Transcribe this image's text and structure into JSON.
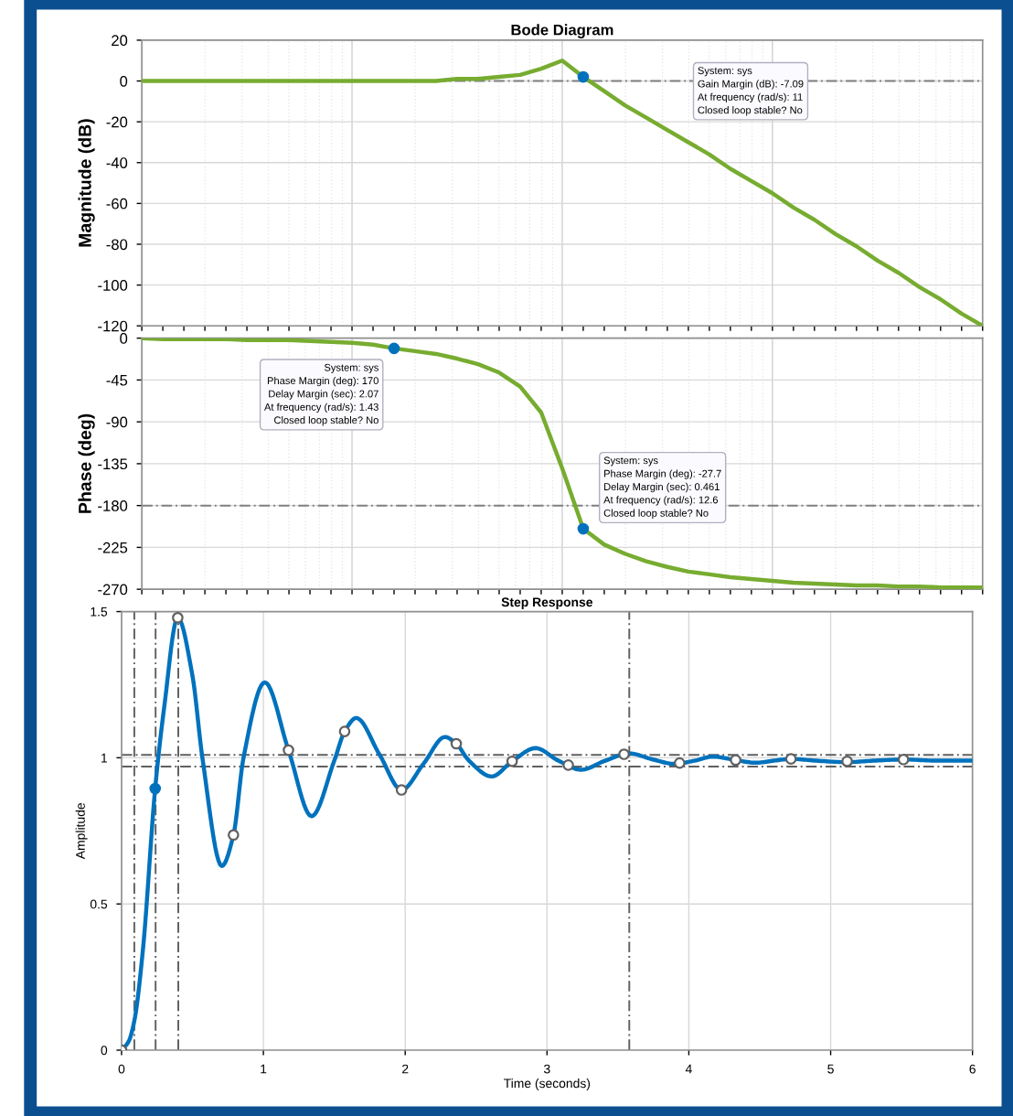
{
  "chart_data": [
    {
      "type": "line",
      "title": "Bode Diagram",
      "ylabel": "Magnitude (dB)",
      "categories": [
        null,
        null,
        null,
        null,
        null,
        null,
        null,
        null,
        null,
        null,
        null,
        null,
        null,
        null,
        null,
        null,
        null,
        null,
        null,
        null,
        null,
        null,
        null,
        null,
        null,
        null,
        null,
        null,
        null,
        null,
        null,
        null,
        null,
        null,
        null,
        null,
        null,
        null,
        null,
        null,
        null
      ],
      "series": [
        {
          "color": "#77ac30",
          "values": [
            0,
            0,
            0,
            0,
            0,
            0,
            0,
            0,
            0,
            0,
            0,
            0,
            0,
            0,
            0,
            1,
            1,
            2,
            3,
            6,
            10,
            2,
            -5,
            -12,
            -18,
            -24,
            -30,
            -36,
            -43,
            -49,
            -55,
            -62,
            -68,
            -75,
            -81,
            -88,
            -94,
            -101,
            -107,
            -114,
            -120
          ]
        },
        {
          "type": "scatter",
          "color": "#0072bd",
          "values": [
            null,
            null,
            null,
            null,
            null,
            null,
            null,
            null,
            null,
            null,
            null,
            null,
            null,
            null,
            null,
            null,
            null,
            null,
            null,
            null,
            null,
            2,
            null,
            null,
            null,
            null,
            null,
            null,
            null,
            null,
            null,
            null,
            null,
            null,
            null,
            null,
            null,
            null,
            null,
            null,
            null
          ]
        }
      ],
      "ylim": [
        -120,
        20
      ],
      "yticks": [
        -120,
        -100,
        -80,
        -60,
        -40,
        -20,
        0,
        20
      ],
      "ref_lines": [
        {
          "axis": "y",
          "value": 0,
          "color": "#808080",
          "line_style": "dashed"
        }
      ],
      "annotations": [
        "System: sys\nGain Margin (dB): -7.09\nAt frequency (rad/s): 11\nClosed loop stable? No"
      ],
      "grid": true,
      "tick_labels": "y"
    },
    {
      "type": "line",
      "ylabel": "Phase (deg)",
      "categories": [
        null,
        null,
        null,
        null,
        null,
        null,
        null,
        null,
        null,
        null,
        null,
        null,
        null,
        null,
        null,
        null,
        null,
        null,
        null,
        null,
        null,
        null,
        null,
        null,
        null,
        null,
        null,
        null,
        null,
        null,
        null,
        null,
        null,
        null,
        null,
        null,
        null,
        null,
        null,
        null,
        null
      ],
      "series": [
        {
          "color": "#77ac30",
          "values": [
            0,
            -1,
            -1,
            -1,
            -1,
            -2,
            -2,
            -2,
            -3,
            -4,
            -5,
            -7,
            -11,
            -14,
            -17,
            -22,
            -28,
            -37,
            -52,
            -80,
            -140,
            -205,
            -222,
            -232,
            -240,
            -246,
            -251,
            -254,
            -257,
            -259,
            -261,
            -263,
            -264,
            -265,
            -266,
            -266,
            -267,
            -267,
            -268,
            -268,
            -268
          ]
        },
        {
          "type": "scatter",
          "color": "#0072bd",
          "values": [
            null,
            null,
            null,
            null,
            null,
            null,
            null,
            null,
            null,
            null,
            null,
            null,
            -11,
            null,
            null,
            null,
            null,
            null,
            null,
            null,
            null,
            -205,
            null,
            null,
            null,
            null,
            null,
            null,
            null,
            null,
            null,
            null,
            null,
            null,
            null,
            null,
            null,
            null,
            null,
            null,
            null
          ]
        }
      ],
      "ylim": [
        -270,
        0
      ],
      "yticks": [
        -270,
        -225,
        -180,
        -135,
        -90,
        -45,
        0
      ],
      "ref_lines": [
        {
          "axis": "y",
          "value": -180,
          "color": "#808080",
          "line_style": "dashed"
        }
      ],
      "annotations": [
        "System: sys\nPhase Margin (deg): 170\nDelay Margin (sec): 2.07\nAt frequency (rad/s): 1.43\nClosed loop stable? No",
        "System: sys\nPhase Margin (deg): -27.7\nDelay Margin (sec): 0.461\nAt frequency (rad/s): 12.6\nClosed loop stable? No"
      ],
      "grid": true,
      "tick_labels": "y"
    },
    {
      "type": "line",
      "title": "Step Response",
      "xlabel": "Time (seconds)",
      "ylabel": "Amplitude",
      "series": [
        {
          "color": "#0072bd",
          "x": [
            0,
            0.05,
            0.09,
            0.15,
            0.237,
            0.3,
            0.396,
            0.5,
            0.57,
            0.707,
            0.789,
            0.86,
            1.01,
            1.177,
            1.34,
            1.5,
            1.573,
            1.655,
            1.82,
            1.974,
            2.13,
            2.28,
            2.36,
            2.45,
            2.61,
            2.754,
            2.92,
            3.08,
            3.24,
            3.41,
            3.58,
            3.74,
            3.9,
            4.04,
            4.17,
            4.33,
            4.47,
            4.6,
            4.72,
            4.9,
            5.11,
            5.3,
            5.52,
            5.75,
            6
          ],
          "values": [
            0,
            0.03,
            0.1,
            0.34,
            0.895,
            1.17,
            1.479,
            1.28,
            1.0,
            0.63,
            0.736,
            1.0,
            1.258,
            1.026,
            0.8,
            0.99,
            1.09,
            1.136,
            1.01,
            0.89,
            0.98,
            1.071,
            1.048,
            0.99,
            0.936,
            0.988,
            1.033,
            0.99,
            0.959,
            0.99,
            1.015,
            0.995,
            0.979,
            0.99,
            1.004,
            0.992,
            0.983,
            0.99,
            0.996,
            0.99,
            0.985,
            0.99,
            0.994,
            0.99,
            0.99
          ]
        },
        {
          "type": "scatter",
          "marker": "circle",
          "color": "#ffffff",
          "x": [
            0,
            0.396,
            0.789,
            1.177,
            1.573,
            1.974,
            2.36,
            2.754,
            3.15,
            3.543,
            3.935,
            4.33,
            4.72,
            5.116,
            5.513
          ],
          "values": [
            0,
            1.479,
            0.736,
            1.026,
            1.09,
            0.89,
            1.048,
            0.988,
            0.975,
            1.012,
            0.982,
            0.992,
            0.996,
            0.988,
            0.994
          ]
        },
        {
          "type": "scatter",
          "marker": "circle",
          "color": "#0072bd",
          "x": [
            0.237
          ],
          "values": [
            0.895
          ]
        }
      ],
      "xlim": [
        0,
        6
      ],
      "xticks": [
        0,
        1,
        2,
        3,
        4,
        5,
        6
      ],
      "ylim": [
        0,
        1.5
      ],
      "yticks": [
        0,
        0.5,
        1,
        1.5
      ],
      "ref_lines": [
        {
          "axis": "y",
          "value": 1.01,
          "color": "#606060",
          "line_style": "dashed"
        },
        {
          "axis": "y",
          "value": 0.97,
          "color": "#606060",
          "line_style": "dashed"
        },
        {
          "axis": "x",
          "value": 0.09,
          "color": "#606060",
          "line_style": "dashed"
        },
        {
          "axis": "x",
          "value": 0.24,
          "color": "#606060",
          "line_style": "dashed"
        },
        {
          "axis": "x",
          "value": 0.4,
          "color": "#606060",
          "line_style": "dashed"
        },
        {
          "axis": "x",
          "value": 3.58,
          "color": "#606060",
          "line_style": "dashed"
        }
      ],
      "grid": true
    }
  ]
}
